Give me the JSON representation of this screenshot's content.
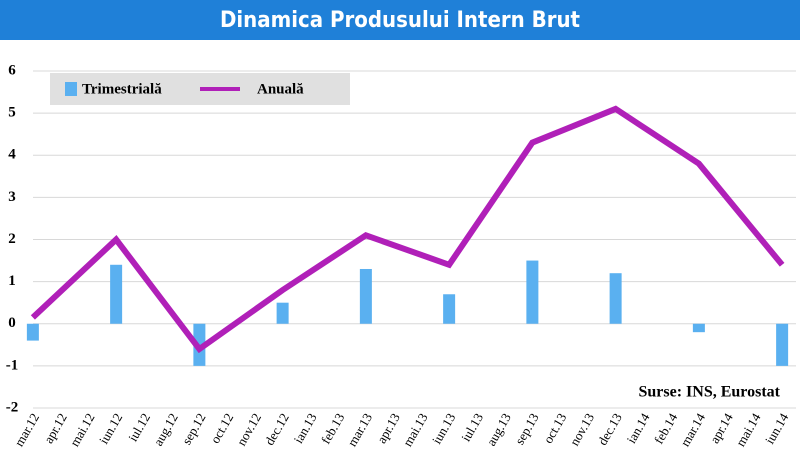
{
  "chart_data": {
    "type": "bar-line",
    "title": "Dinamica Produsului Intern Brut",
    "categories": [
      "mar.12",
      "apr.12",
      "mai.12",
      "iun.12",
      "iul.12",
      "aug.12",
      "sep.12",
      "oct.12",
      "nov.12",
      "dec.12",
      "ian.13",
      "feb.13",
      "mar.13",
      "apr.13",
      "mai.13",
      "iun.13",
      "iul.13",
      "aug.13",
      "sep.13",
      "oct.13",
      "nov.13",
      "dec.13",
      "ian.14",
      "feb.14",
      "mar.14",
      "apr.14",
      "mai.14",
      "iun.14"
    ],
    "series": [
      {
        "name": "Trimestrială",
        "type": "bar",
        "color": "#5ab0f0",
        "x": [
          "mar.12",
          "iun.12",
          "sep.12",
          "dec.12",
          "mar.13",
          "iun.13",
          "sep.13",
          "dec.13",
          "mar.14",
          "iun.14"
        ],
        "values": [
          -0.4,
          1.4,
          -1.0,
          0.5,
          1.3,
          0.7,
          1.5,
          1.2,
          -0.2,
          -1.0
        ]
      },
      {
        "name": "Anuală",
        "type": "line",
        "color": "#b020b8",
        "x": [
          "mar.12",
          "iun.12",
          "sep.12",
          "dec.12",
          "mar.13",
          "iun.13",
          "sep.13",
          "dec.13",
          "mar.14",
          "iun.14"
        ],
        "values": [
          0.15,
          2.0,
          -0.6,
          0.8,
          2.1,
          1.4,
          4.3,
          5.1,
          3.8,
          1.4
        ]
      }
    ],
    "ylim": [
      -2,
      6
    ],
    "yticks": [
      -2,
      -1,
      0,
      1,
      2,
      3,
      4,
      5,
      6
    ],
    "grid": true,
    "annotation": "Surse: INS, Eurostat"
  }
}
